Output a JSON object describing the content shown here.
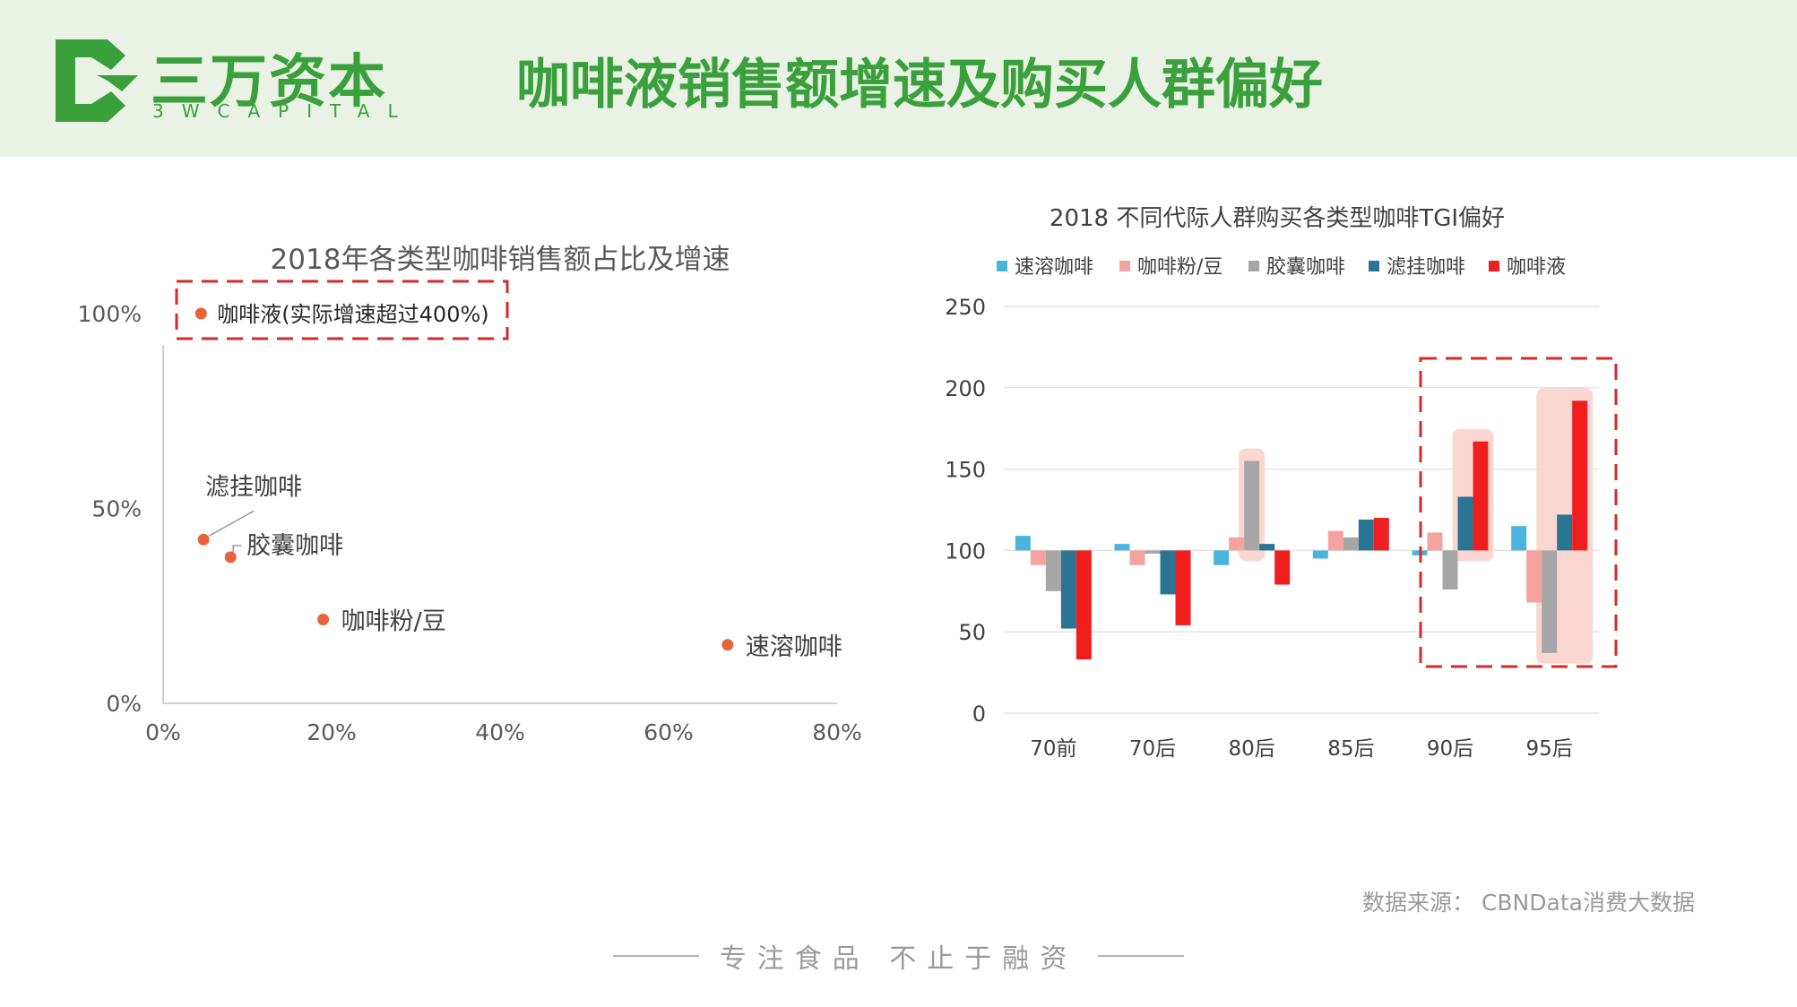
{
  "header": {
    "logo_cn": "三万资本",
    "logo_en": "3WCAPITAL",
    "title": "咖啡液销售额增速及购买人群偏好"
  },
  "colors": {
    "brand_green": "#3aa03c",
    "header_bg": "#e9f2e5",
    "highlight_red": "#d42a2a",
    "scatter_point": "#e8623a"
  },
  "chart_data": [
    {
      "type": "scatter",
      "title": "2018年各类型咖啡销售额占比及增速",
      "xlim": [
        0,
        80
      ],
      "ylim": [
        0,
        100
      ],
      "x_ticks": [
        "0%",
        "20%",
        "40%",
        "60%",
        "80%"
      ],
      "y_ticks": [
        "0%",
        "50%",
        "100%"
      ],
      "points": [
        {
          "label": "咖啡液(实际增速超过400%)",
          "x": 4.5,
          "y": 100,
          "highlighted": true
        },
        {
          "label": "滤挂咖啡",
          "x": 4.8,
          "y": 42
        },
        {
          "label": "胶囊咖啡",
          "x": 8,
          "y": 37.5
        },
        {
          "label": "咖啡粉/豆",
          "x": 19,
          "y": 21.5
        },
        {
          "label": "速溶咖啡",
          "x": 67,
          "y": 15
        }
      ]
    },
    {
      "type": "bar",
      "title": "2018 不同代际人群购买各类型咖啡TGI偏好",
      "baseline": 100,
      "ylim": [
        0,
        250
      ],
      "y_ticks": [
        "0",
        "50",
        "100",
        "150",
        "200",
        "250"
      ],
      "categories": [
        "70前",
        "70后",
        "80后",
        "85后",
        "90后",
        "95后"
      ],
      "legend_position": "top",
      "series": [
        {
          "name": "速溶咖啡",
          "color": "#4bb4de",
          "values": [
            109,
            104,
            91,
            95,
            97,
            115
          ]
        },
        {
          "name": "咖啡粉/豆",
          "color": "#f4a3a0",
          "values": [
            91,
            91,
            108,
            112,
            111,
            68
          ]
        },
        {
          "name": "胶囊咖啡",
          "color": "#a6a6a6",
          "values": [
            75,
            98,
            155,
            108,
            76,
            37
          ]
        },
        {
          "name": "滤挂咖啡",
          "color": "#2b7494",
          "values": [
            52,
            73,
            104,
            119,
            133,
            122
          ]
        },
        {
          "name": "咖啡液",
          "color": "#ef1f1f",
          "values": [
            33,
            54,
            79,
            120,
            167,
            192
          ]
        }
      ]
    }
  ],
  "source": "数据来源：  CBNData消费大数据",
  "footer": "专注食品  不止于融资"
}
